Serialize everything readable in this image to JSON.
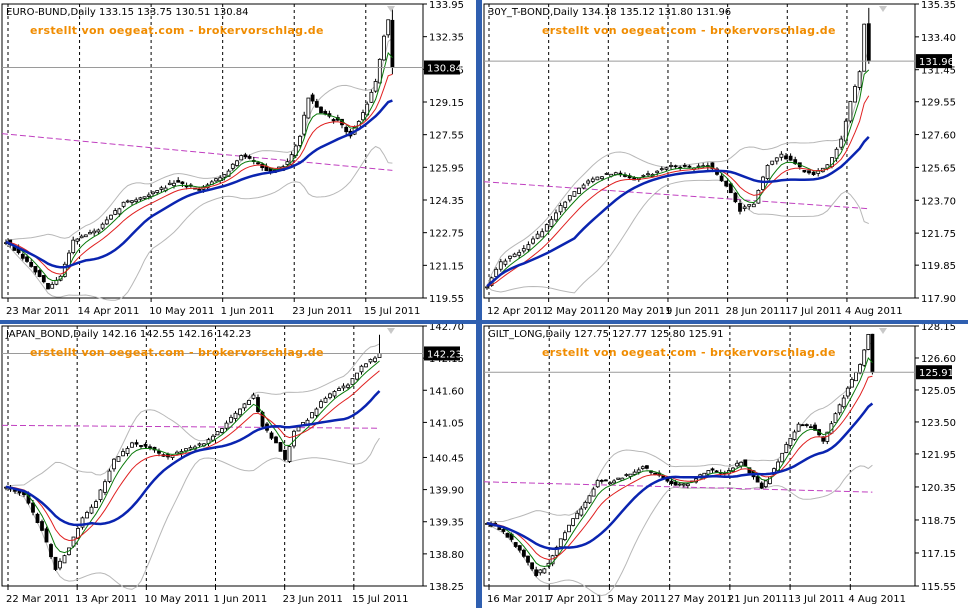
{
  "watermark": "erstellt von oegeat.com - brokervorschlag.de",
  "colors": {
    "candle": "#000000",
    "candle_up_fill": "#ffffff",
    "ema_fast": "#0a7a0a",
    "ema_mid": "#e02020",
    "sma_slow": "#0a24b0",
    "bollinger": "#b8b8b8",
    "long_ma": "#c040c0",
    "watermark": "#f08c00",
    "separator": "#2f5fb0"
  },
  "chart_data": [
    {
      "id": "euro-bund",
      "type": "candlestick",
      "header": "EURO-BUND,Daily  133.15 133.75 130.51 130.84",
      "price_label": "130.84",
      "yticks": [
        "133.95",
        "132.35",
        "130.75",
        "129.15",
        "127.55",
        "125.95",
        "124.35",
        "122.75",
        "121.15",
        "119.55"
      ],
      "ylim": [
        119.55,
        133.95
      ],
      "xticks": [
        "23 Mar 2011",
        "14 Apr 2011",
        "10 May 2011",
        "1 Jun 2011",
        "23 Jun 2011",
        "15 Jul 2011"
      ],
      "anchors": [
        [
          0,
          122.3
        ],
        [
          6,
          121.1
        ],
        [
          10,
          120.0
        ],
        [
          13,
          120.6
        ],
        [
          16,
          122.4
        ],
        [
          22,
          122.9
        ],
        [
          28,
          124.2
        ],
        [
          34,
          124.6
        ],
        [
          40,
          125.2
        ],
        [
          46,
          124.9
        ],
        [
          52,
          125.6
        ],
        [
          56,
          126.5
        ],
        [
          60,
          126.2
        ],
        [
          63,
          125.6
        ],
        [
          67,
          126.2
        ],
        [
          70,
          127.5
        ],
        [
          72,
          129.4
        ],
        [
          75,
          128.6
        ],
        [
          79,
          128.2
        ],
        [
          82,
          127.5
        ],
        [
          85,
          128.6
        ],
        [
          88,
          130.1
        ],
        [
          90,
          132.4
        ],
        [
          91,
          133.15
        ],
        [
          92,
          130.84
        ]
      ],
      "last": {
        "open": 133.15,
        "high": 133.75,
        "low": 130.51,
        "close": 130.84
      },
      "long_ma": [
        127.6,
        125.8
      ]
    },
    {
      "id": "30y-t-bond",
      "type": "candlestick",
      "header": "30Y_T-BOND,Daily  134.18 135.12 131.80 131.96",
      "price_label": "131.96",
      "yticks": [
        "135.35",
        "133.40",
        "131.45",
        "129.55",
        "127.60",
        "125.65",
        "123.70",
        "121.75",
        "119.85",
        "117.90"
      ],
      "ylim": [
        117.9,
        135.35
      ],
      "xticks": [
        "12 Apr 2011",
        "2 May 2011",
        "20 May 2011",
        "9 Jun 2011",
        "28 Jun 2011",
        "17 Jul 2011",
        "4 Aug 2011"
      ],
      "anchors": [
        [
          0,
          118.6
        ],
        [
          3,
          120.0
        ],
        [
          8,
          120.8
        ],
        [
          12,
          121.9
        ],
        [
          16,
          123.4
        ],
        [
          20,
          124.5
        ],
        [
          24,
          125.1
        ],
        [
          28,
          125.4
        ],
        [
          32,
          124.9
        ],
        [
          36,
          125.3
        ],
        [
          40,
          125.7
        ],
        [
          44,
          125.6
        ],
        [
          48,
          125.8
        ],
        [
          52,
          124.6
        ],
        [
          55,
          123.1
        ],
        [
          58,
          123.5
        ],
        [
          61,
          125.8
        ],
        [
          64,
          126.4
        ],
        [
          68,
          125.6
        ],
        [
          71,
          125.2
        ],
        [
          74,
          125.8
        ],
        [
          77,
          127.3
        ],
        [
          79,
          129.6
        ],
        [
          81,
          131.4
        ],
        [
          82,
          134.18
        ],
        [
          83,
          131.96
        ]
      ],
      "last": {
        "open": 134.18,
        "high": 135.12,
        "low": 131.8,
        "close": 131.96
      },
      "long_ma": [
        124.8,
        123.2
      ]
    },
    {
      "id": "japan-bond",
      "type": "candlestick",
      "header": "JAPAN_BOND,Daily  142.16 142.55 142.16 142.23",
      "price_label": "142.23",
      "yticks": [
        "142.70",
        "142.15",
        "141.60",
        "141.05",
        "140.45",
        "139.90",
        "139.35",
        "138.80",
        "138.25"
      ],
      "ylim": [
        138.25,
        142.7
      ],
      "xticks": [
        "22 Mar 2011",
        "13 Apr 2011",
        "10 May 2011",
        "1 Jun 2011",
        "23 Jun 2011",
        "15 Jul 2011"
      ],
      "anchors": [
        [
          0,
          139.95
        ],
        [
          4,
          139.8
        ],
        [
          8,
          139.2
        ],
        [
          11,
          138.55
        ],
        [
          14,
          138.9
        ],
        [
          17,
          139.4
        ],
        [
          20,
          139.7
        ],
        [
          24,
          140.4
        ],
        [
          28,
          140.7
        ],
        [
          32,
          140.6
        ],
        [
          36,
          140.45
        ],
        [
          40,
          140.6
        ],
        [
          44,
          140.7
        ],
        [
          48,
          140.95
        ],
        [
          52,
          141.3
        ],
        [
          55,
          141.5
        ],
        [
          57,
          141.0
        ],
        [
          60,
          140.7
        ],
        [
          62,
          140.4
        ],
        [
          64,
          140.9
        ],
        [
          67,
          141.1
        ],
        [
          70,
          141.4
        ],
        [
          73,
          141.6
        ],
        [
          76,
          141.7
        ],
        [
          79,
          142.0
        ],
        [
          82,
          142.16
        ],
        [
          83,
          142.23
        ]
      ],
      "last": {
        "open": 142.16,
        "high": 142.55,
        "low": 142.16,
        "close": 142.23
      },
      "long_ma": [
        141.0,
        140.95
      ]
    },
    {
      "id": "gilt-long",
      "type": "candlestick",
      "header": "GILT_LONG,Daily  127.75 127.77 125.80 125.91",
      "price_label": "125.91",
      "yticks": [
        "128.15",
        "126.60",
        "125.05",
        "123.50",
        "121.95",
        "120.35",
        "118.75",
        "117.15",
        "115.55"
      ],
      "ylim": [
        115.55,
        128.15
      ],
      "xticks": [
        "16 Mar 2011",
        "7 Apr 2011",
        "5 May 2011",
        "27 May 2011",
        "21 Jun 2011",
        "13 Jul 2011",
        "4 Aug 2011"
      ],
      "anchors": [
        [
          0,
          118.6
        ],
        [
          4,
          118.2
        ],
        [
          8,
          117.3
        ],
        [
          12,
          116.1
        ],
        [
          15,
          116.6
        ],
        [
          18,
          117.8
        ],
        [
          21,
          118.8
        ],
        [
          24,
          119.6
        ],
        [
          27,
          120.6
        ],
        [
          30,
          120.6
        ],
        [
          34,
          120.9
        ],
        [
          38,
          121.3
        ],
        [
          42,
          120.9
        ],
        [
          46,
          120.4
        ],
        [
          50,
          120.6
        ],
        [
          54,
          121.2
        ],
        [
          58,
          121.0
        ],
        [
          62,
          121.6
        ],
        [
          65,
          120.8
        ],
        [
          67,
          120.3
        ],
        [
          70,
          121.2
        ],
        [
          73,
          122.4
        ],
        [
          76,
          123.4
        ],
        [
          79,
          123.3
        ],
        [
          82,
          122.6
        ],
        [
          85,
          123.9
        ],
        [
          88,
          125.1
        ],
        [
          91,
          126.3
        ],
        [
          93,
          127.75
        ],
        [
          94,
          125.91
        ]
      ],
      "last": {
        "open": 127.75,
        "high": 127.77,
        "low": 125.8,
        "close": 125.91
      },
      "long_ma": [
        120.6,
        120.1
      ]
    }
  ]
}
